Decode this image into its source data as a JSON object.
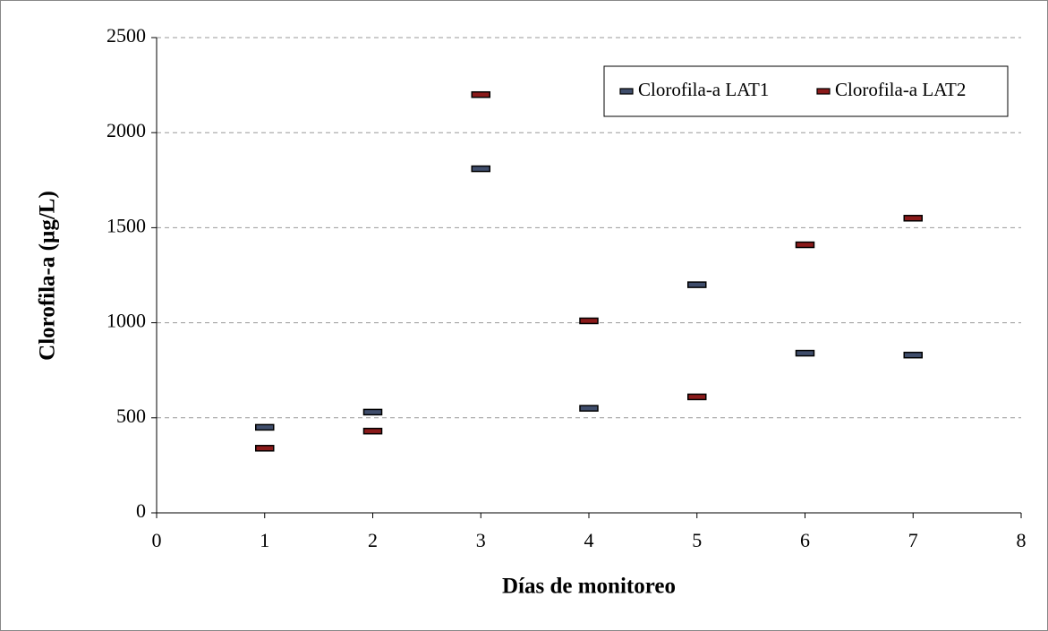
{
  "chart_data": {
    "type": "scatter",
    "xlabel": "Días de monitoreo",
    "ylabel": "Clorofila-a  (µg/L)",
    "xlim": [
      0,
      8
    ],
    "xticks": [
      0,
      1,
      2,
      3,
      4,
      5,
      6,
      7,
      8
    ],
    "ylim": [
      0,
      2500
    ],
    "yticks": [
      0,
      500,
      1000,
      1500,
      2000,
      2500
    ],
    "grid": true,
    "legend": "upper right",
    "series": [
      {
        "name": "Clorofila-a LAT1",
        "color": "#3f4d6b",
        "x": [
          1,
          2,
          3,
          4,
          5,
          6,
          7
        ],
        "values": [
          450,
          530,
          1810,
          550,
          1200,
          840,
          830
        ]
      },
      {
        "name": "Clorofila-a LAT2",
        "color": "#8b1a1a",
        "x": [
          1,
          2,
          3,
          4,
          5,
          6,
          7
        ],
        "values": [
          340,
          430,
          2200,
          1010,
          610,
          1410,
          1550
        ]
      }
    ]
  }
}
